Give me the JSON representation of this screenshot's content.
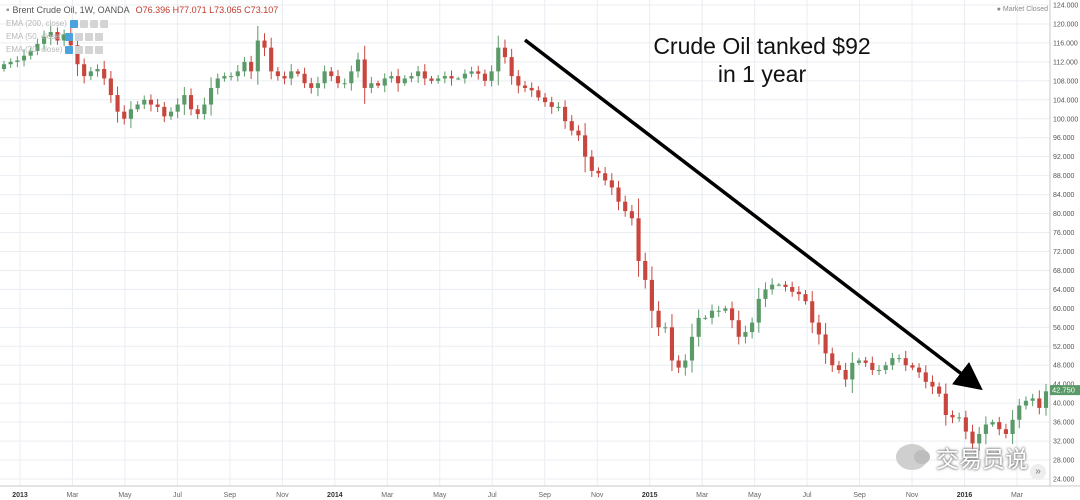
{
  "legend": {
    "symbol_icon": "square-icon",
    "title": "Brent Crude Oil, 1W, OANDA",
    "ohlc": "O76.396 H77.071 L73.065 C73.107",
    "indicators": [
      "EMA (200, close)",
      "EMA (50, close)",
      "EMA (20, close)"
    ]
  },
  "market_status": "● Market Closed",
  "annotation": [
    "Crude Oil tanked $92",
    "in 1 year"
  ],
  "watermark": "交易员说",
  "colors": {
    "up": "#5a9a68",
    "down": "#c8463d",
    "arrow": "#000000",
    "grid": "#e9edf2"
  },
  "chart_data": {
    "type": "candlestick",
    "price_label": "42.750",
    "ylim": [
      24,
      124
    ],
    "yticks": [
      "24.000",
      "28.000",
      "32.000",
      "36.000",
      "40.000",
      "44.000",
      "48.000",
      "52.000",
      "56.000",
      "60.000",
      "64.000",
      "68.000",
      "72.000",
      "76.000",
      "80.000",
      "84.000",
      "88.000",
      "92.000",
      "96.000",
      "100.000",
      "104.000",
      "108.000",
      "112.000",
      "116.000",
      "120.000",
      "124.000"
    ],
    "xticks": [
      "2013",
      "Mar",
      "May",
      "Jul",
      "Sep",
      "Nov",
      "2014",
      "Mar",
      "May",
      "Jul",
      "Sep",
      "Nov",
      "2015",
      "Mar",
      "May",
      "Jul",
      "Sep",
      "Nov",
      "2016",
      "Mar"
    ],
    "close": [
      111.5,
      112.0,
      112.3,
      113.3,
      114.3,
      115.8,
      117.3,
      118.3,
      116.5,
      117.8,
      115.5,
      111.5,
      109.0,
      110.0,
      110.5,
      108.5,
      105.0,
      101.5,
      100.0,
      102.0,
      103.0,
      104.0,
      103.0,
      102.5,
      100.5,
      101.5,
      103.0,
      105.0,
      102.0,
      101.0,
      103.0,
      106.5,
      108.5,
      109.0,
      109.0,
      110.0,
      112.0,
      110.0,
      116.5,
      115.0,
      110.0,
      109.0,
      108.5,
      110.0,
      109.5,
      107.5,
      106.5,
      107.5,
      110.0,
      109.0,
      107.5,
      107.5,
      110.0,
      112.5,
      106.5,
      107.5,
      107.0,
      108.5,
      109.0,
      107.5,
      108.5,
      109.0,
      110.0,
      108.5,
      108.0,
      108.5,
      109.0,
      108.5,
      108.5,
      109.5,
      110.0,
      109.5,
      108.0,
      110.0,
      115.0,
      113.0,
      109.0,
      107.0,
      106.5,
      106.0,
      104.5,
      103.5,
      102.5,
      102.5,
      99.5,
      97.5,
      96.5,
      92.0,
      89.0,
      88.5,
      87.0,
      85.5,
      82.5,
      80.5,
      79.0,
      70.0,
      66.0,
      59.5,
      56.0,
      56.0,
      49.0,
      47.5,
      49.0,
      54.0,
      58.0,
      58.0,
      59.5,
      59.5,
      60.0,
      57.5,
      54.0,
      55.0,
      57.0,
      62.0,
      64.0,
      65.0,
      65.0,
      64.5,
      63.5,
      63.0,
      61.5,
      57.0,
      54.5,
      50.5,
      48.0,
      47.0,
      45.0,
      48.5,
      49.0,
      48.5,
      47.0,
      47.0,
      48.0,
      49.5,
      49.5,
      48.0,
      47.5,
      46.5,
      44.5,
      43.5,
      42.0,
      37.5,
      37.0,
      37.0,
      34.0,
      31.5,
      33.5,
      35.5,
      36.0,
      34.5,
      33.5,
      36.5,
      39.5,
      40.5,
      41.0,
      39.0,
      42.5
    ]
  }
}
